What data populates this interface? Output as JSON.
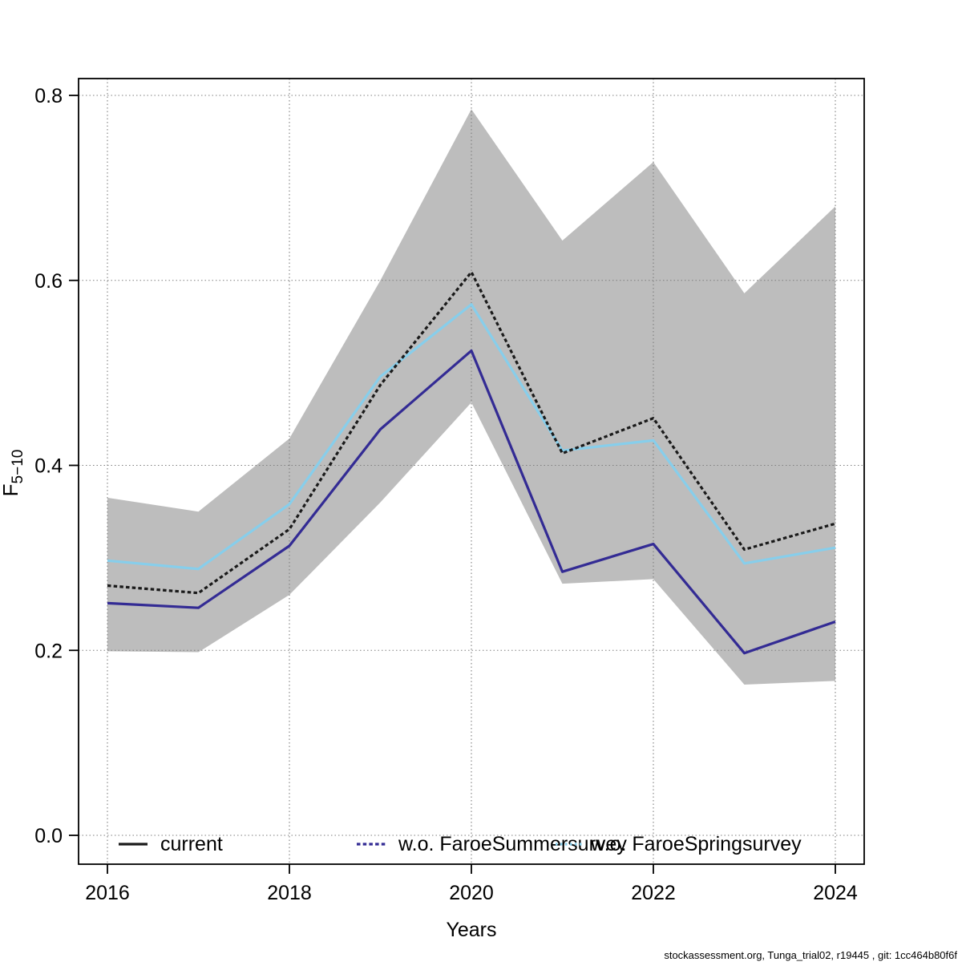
{
  "figure": {
    "xlabel": "Years",
    "ylabel_main": "F",
    "ylabel_sub": "5−10",
    "footer": "stockassessment.org, Tunga_trial02, r19445 , git: 1cc464b80f6f"
  },
  "chart_data": {
    "type": "line",
    "title": "",
    "xlabel": "Years",
    "ylabel": "F5−10",
    "grid": true,
    "legend_position": "bottom-inside",
    "xlim": [
      2015.68,
      2024.32
    ],
    "ylim": [
      -0.031,
      0.818
    ],
    "xticks": [
      "2016",
      "2018",
      "2020",
      "2022",
      "2024"
    ],
    "yticks": [
      "0.0",
      "0.2",
      "0.4",
      "0.6",
      "0.8"
    ],
    "x": [
      2016,
      2017,
      2018,
      2019,
      2020,
      2021,
      2022,
      2023,
      2024
    ],
    "band": {
      "name": "confidence-band",
      "color": "#bdbdbd",
      "upper": [
        0.365,
        0.35,
        0.429,
        0.6,
        0.785,
        0.643,
        0.728,
        0.586,
        0.68
      ],
      "lower": [
        0.199,
        0.198,
        0.26,
        0.36,
        0.468,
        0.272,
        0.277,
        0.163,
        0.167
      ]
    },
    "series": [
      {
        "name": "current",
        "color": "#1a1a1a",
        "plot_style": "dashed",
        "legend_style": "solid",
        "values": [
          0.27,
          0.262,
          0.331,
          0.487,
          0.609,
          0.413,
          0.451,
          0.309,
          0.337
        ]
      },
      {
        "name": "w.o. FaroeSummersurvey",
        "color": "#332b94",
        "plot_style": "solid",
        "legend_style": "dashed",
        "values": [
          0.251,
          0.246,
          0.313,
          0.439,
          0.524,
          0.285,
          0.315,
          0.197,
          0.231
        ]
      },
      {
        "name": "w.o. FaroeSpringsurvey",
        "color": "#87ceeb",
        "plot_style": "solid",
        "legend_style": "dotted",
        "values": [
          0.297,
          0.288,
          0.358,
          0.496,
          0.574,
          0.416,
          0.427,
          0.294,
          0.311
        ]
      }
    ]
  }
}
